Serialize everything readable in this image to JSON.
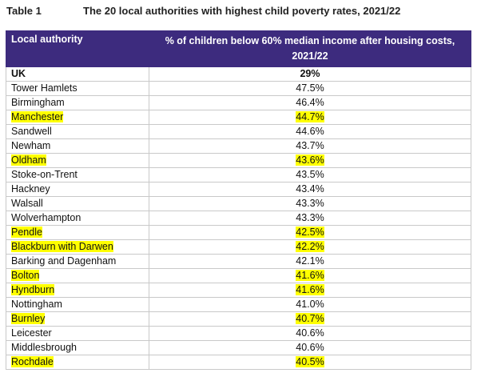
{
  "header": {
    "label": "Table 1",
    "title": "The 20 local authorities with highest child poverty rates, 2021/22"
  },
  "table": {
    "columns": [
      "Local authority",
      "% of children below 60% median income after housing costs, 2021/22"
    ],
    "rows": [
      {
        "cells": [
          "UK",
          "29%"
        ],
        "bold": true,
        "highlight": false
      },
      {
        "cells": [
          "Tower Hamlets",
          "47.5%"
        ],
        "bold": false,
        "highlight": false
      },
      {
        "cells": [
          "Birmingham",
          "46.4%"
        ],
        "bold": false,
        "highlight": false
      },
      {
        "cells": [
          "Manchester",
          "44.7%"
        ],
        "bold": false,
        "highlight": true
      },
      {
        "cells": [
          "Sandwell",
          "44.6%"
        ],
        "bold": false,
        "highlight": false
      },
      {
        "cells": [
          "Newham",
          "43.7%"
        ],
        "bold": false,
        "highlight": false
      },
      {
        "cells": [
          "Oldham",
          "43.6%"
        ],
        "bold": false,
        "highlight": true
      },
      {
        "cells": [
          "Stoke-on-Trent",
          "43.5%"
        ],
        "bold": false,
        "highlight": false
      },
      {
        "cells": [
          "Hackney",
          "43.4%"
        ],
        "bold": false,
        "highlight": false
      },
      {
        "cells": [
          "Walsall",
          "43.3%"
        ],
        "bold": false,
        "highlight": false
      },
      {
        "cells": [
          "Wolverhampton",
          "43.3%"
        ],
        "bold": false,
        "highlight": false
      },
      {
        "cells": [
          "Pendle",
          "42.5%"
        ],
        "bold": false,
        "highlight": true
      },
      {
        "cells": [
          "Blackburn with Darwen",
          "42.2%"
        ],
        "bold": false,
        "highlight": true
      },
      {
        "cells": [
          "Barking and Dagenham",
          "42.1%"
        ],
        "bold": false,
        "highlight": false
      },
      {
        "cells": [
          "Bolton",
          "41.6%"
        ],
        "bold": false,
        "highlight": true
      },
      {
        "cells": [
          "Hyndburn",
          "41.6%"
        ],
        "bold": false,
        "highlight": true
      },
      {
        "cells": [
          "Nottingham",
          "41.0%"
        ],
        "bold": false,
        "highlight": false
      },
      {
        "cells": [
          "Burnley",
          "40.7%"
        ],
        "bold": false,
        "highlight": true
      },
      {
        "cells": [
          "Leicester",
          "40.6%"
        ],
        "bold": false,
        "highlight": false
      },
      {
        "cells": [
          "Middlesbrough",
          "40.6%"
        ],
        "bold": false,
        "highlight": false
      },
      {
        "cells": [
          "Rochdale",
          "40.5%"
        ],
        "bold": false,
        "highlight": true
      }
    ]
  }
}
